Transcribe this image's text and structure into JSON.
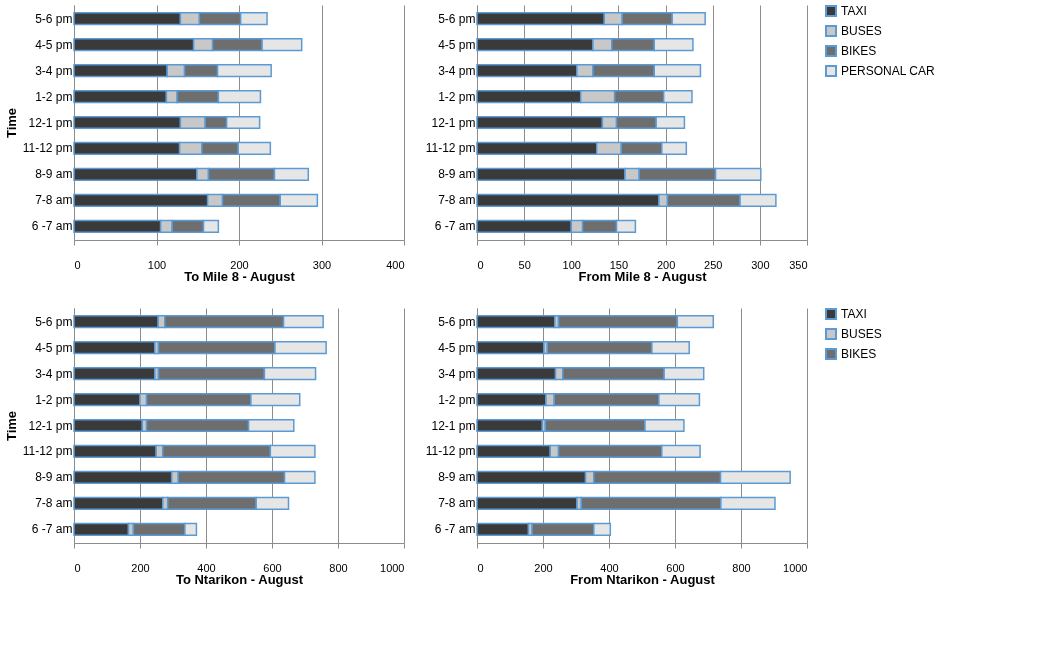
{
  "chart_data": [
    {
      "type": "bar",
      "orientation": "horizontal",
      "stacked": true,
      "xlabel": "To Mile 8 - August",
      "ylabel": "Time",
      "grid": "x",
      "xlim": [
        0,
        400
      ],
      "xticks": [
        0,
        100,
        200,
        300,
        400
      ],
      "categories": [
        "5-6 pm",
        "4-5 pm",
        "3-4 pm",
        "1-2 pm",
        "12-1 pm",
        "11-12 pm",
        "8-9 am",
        "7-8 am",
        "6 -7  am"
      ],
      "series": [
        {
          "color": "#3a3a3a",
          "values": [
            129,
            145,
            113,
            112,
            129,
            128,
            149,
            162,
            105
          ]
        },
        {
          "color": "#c8c8c8",
          "values": [
            23,
            23,
            21,
            13,
            30,
            27,
            14,
            18,
            14
          ]
        },
        {
          "color": "#6e6e6e",
          "values": [
            50,
            60,
            40,
            50,
            26,
            44,
            80,
            70,
            38
          ]
        },
        {
          "color": "#e6e6e6",
          "values": [
            32,
            48,
            65,
            51,
            40,
            39,
            41,
            45,
            18
          ]
        }
      ]
    },
    {
      "type": "bar",
      "orientation": "horizontal",
      "stacked": true,
      "xlabel": "From Mile 8 - August",
      "grid": "x",
      "legend": "right",
      "xlim": [
        0,
        350
      ],
      "xticks": [
        0,
        50,
        100,
        150,
        200,
        250,
        300,
        350
      ],
      "categories": [
        "5-6 pm",
        "4-5 pm",
        "3-4 pm",
        "1-2 pm",
        "12-1 pm",
        "11-12 pm",
        "8-9 am",
        "7-8 am",
        "6 -7  am"
      ],
      "series": [
        {
          "name": "TAXI",
          "color": "#3a3a3a",
          "values": [
            135,
            123,
            106,
            110,
            133,
            127,
            157,
            193,
            100
          ]
        },
        {
          "name": "BUSES",
          "color": "#c8c8c8",
          "values": [
            19,
            20,
            17,
            36,
            15,
            26,
            15,
            9,
            12
          ]
        },
        {
          "name": "BIKES",
          "color": "#6e6e6e",
          "values": [
            53,
            45,
            65,
            52,
            42,
            43,
            81,
            77,
            36
          ]
        },
        {
          "name": "PERSONAL CAR",
          "color": "#e6e6e6",
          "values": [
            35,
            41,
            49,
            30,
            30,
            26,
            48,
            38,
            20
          ]
        }
      ]
    },
    {
      "type": "bar",
      "orientation": "horizontal",
      "stacked": true,
      "xlabel": "To Ntarikon - August",
      "ylabel": "Time",
      "grid": "x",
      "xlim": [
        0,
        1000
      ],
      "xticks": [
        0,
        200,
        400,
        600,
        800,
        1000
      ],
      "categories": [
        "5-6 pm",
        "4-5 pm",
        "3-4 pm",
        "1-2 pm",
        "12-1 pm",
        "11-12 pm",
        "8-9 am",
        "7-8 am",
        "6 -7  am"
      ],
      "series": [
        {
          "color": "#3a3a3a",
          "values": [
            255,
            245,
            245,
            200,
            207,
            249,
            296,
            269,
            165
          ]
        },
        {
          "color": "#c8c8c8",
          "values": [
            20,
            11,
            11,
            20,
            13,
            20,
            20,
            15,
            15
          ]
        },
        {
          "color": "#6e6e6e",
          "values": [
            360,
            353,
            321,
            316,
            309,
            326,
            322,
            268,
            156
          ]
        },
        {
          "color": "#e6e6e6",
          "values": [
            120,
            155,
            155,
            148,
            137,
            135,
            92,
            98,
            35
          ]
        }
      ]
    },
    {
      "type": "bar",
      "orientation": "horizontal",
      "stacked": true,
      "xlabel": "From Ntarikon -   August",
      "grid": "x",
      "legend": "top right",
      "xlim": [
        0,
        1000
      ],
      "xticks": [
        0,
        200,
        400,
        600,
        800,
        1000
      ],
      "categories": [
        "5-6 pm",
        "4-5 pm",
        "3-4 pm",
        "1-2 pm",
        "12-1 pm",
        "11-12 pm",
        "8-9 am",
        "7-8 am",
        "6 -7  am"
      ],
      "series": [
        {
          "name": "TAXI",
          "color": "#3a3a3a",
          "values": [
            236,
            203,
            238,
            209,
            198,
            222,
            329,
            303,
            156
          ]
        },
        {
          "name": "BUSES",
          "color": "#c8c8c8",
          "values": [
            11,
            10,
            22,
            25,
            9,
            25,
            25,
            13,
            11
          ]
        },
        {
          "name": "BIKES",
          "color": "#6e6e6e",
          "values": [
            360,
            317,
            307,
            317,
            302,
            313,
            384,
            423,
            187
          ]
        },
        {
          "color": "#e6e6e6",
          "values": [
            109,
            113,
            120,
            123,
            118,
            116,
            211,
            164,
            50
          ]
        }
      ]
    }
  ]
}
